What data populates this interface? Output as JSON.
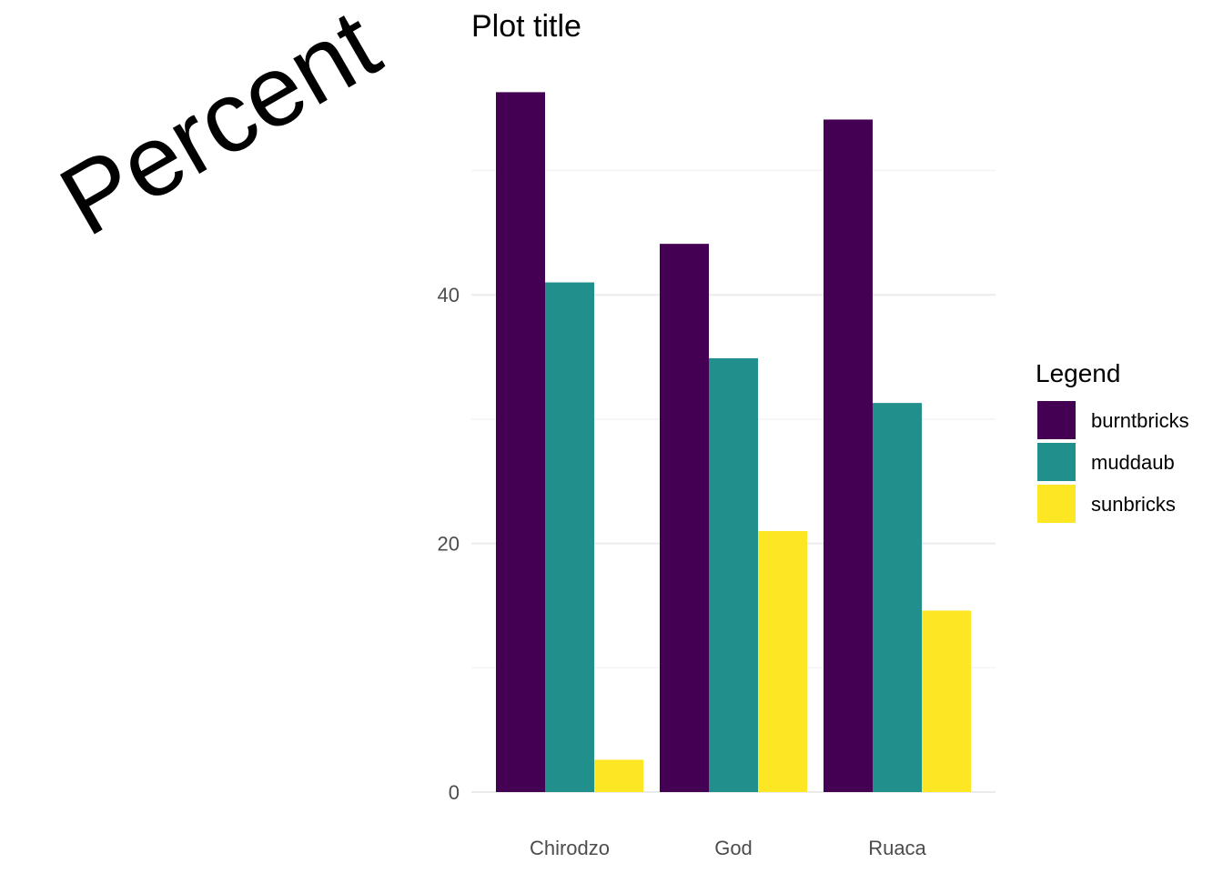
{
  "chart_data": {
    "type": "bar",
    "title": "Plot title",
    "xlabel": "",
    "ylabel": "Percent",
    "categories": [
      "Chirodzo",
      "God",
      "Ruaca"
    ],
    "series": [
      {
        "name": "burntbricks",
        "color": "#440154",
        "values": [
          56.3,
          44.1,
          54.1
        ]
      },
      {
        "name": "muddaub",
        "color": "#21908C",
        "values": [
          41.0,
          34.9,
          31.3
        ]
      },
      {
        "name": "sunbricks",
        "color": "#FDE725",
        "values": [
          2.6,
          21.0,
          14.6
        ]
      }
    ],
    "ylim": [
      0,
      60
    ],
    "yticks": [
      0,
      20,
      40
    ],
    "ytick_labels": [
      "0",
      "20",
      "40"
    ],
    "grid": true,
    "legend": {
      "title": "Legend",
      "position": "right"
    }
  }
}
